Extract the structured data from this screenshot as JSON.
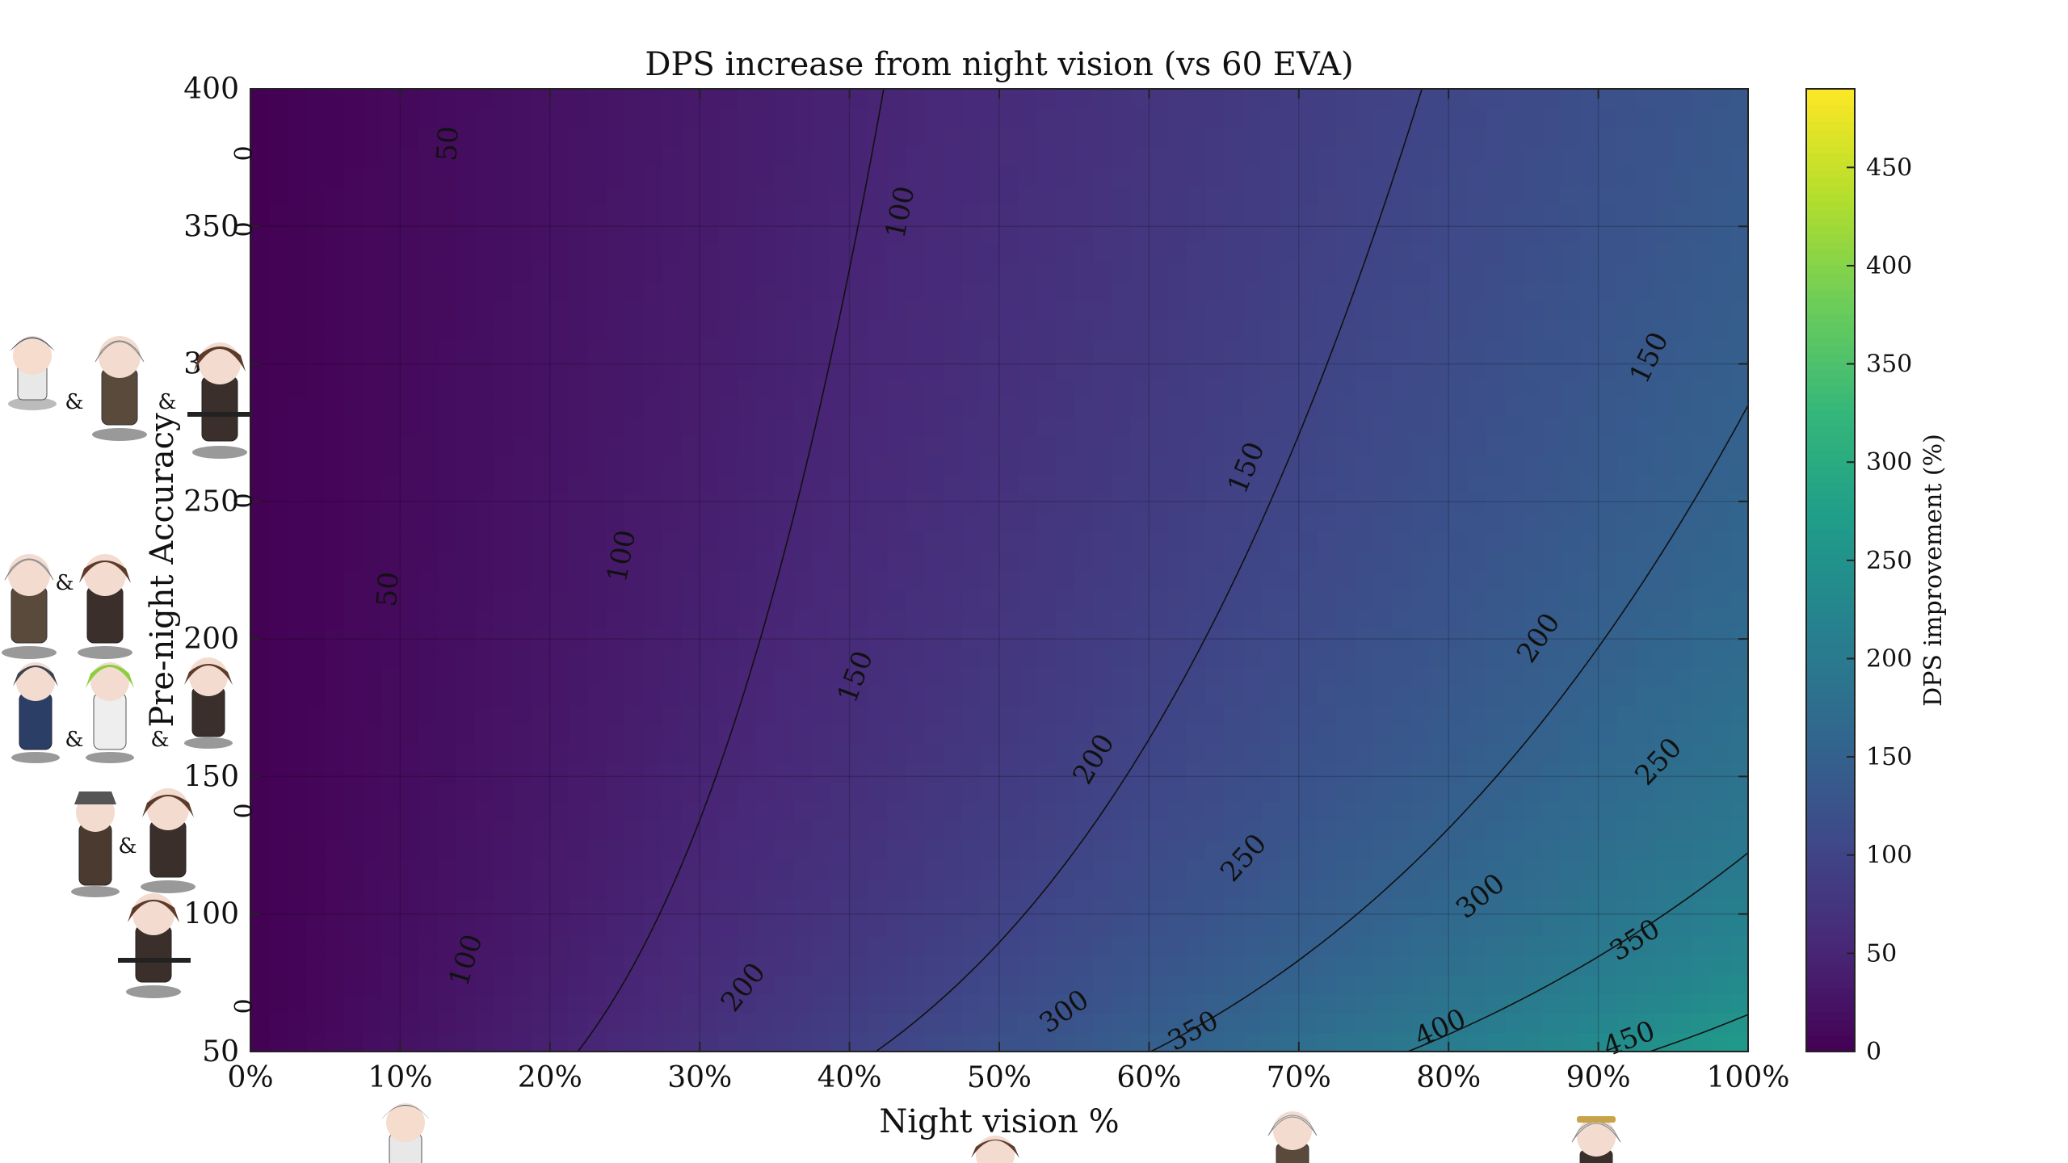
{
  "chart_data": {
    "type": "heatmap",
    "title": "DPS increase from night vision (vs 60 EVA)",
    "xlabel": "Night vision %",
    "ylabel": "Pre-night Accuracy",
    "xlim": [
      0,
      100
    ],
    "ylim": [
      50,
      400
    ],
    "xticks": [
      "0%",
      "10%",
      "20%",
      "30%",
      "40%",
      "50%",
      "60%",
      "70%",
      "80%",
      "90%",
      "100%"
    ],
    "yticks": [
      "50",
      "100",
      "150",
      "200",
      "250",
      "300",
      "350",
      "400"
    ],
    "colormap": "viridis",
    "grid": true,
    "colorbar": {
      "label": "DPS improvement (%)",
      "range": [
        0,
        490
      ],
      "ticks": [
        "0",
        "50",
        "100",
        "150",
        "200",
        "250",
        "300",
        "350",
        "400",
        "450"
      ]
    },
    "contour_levels": [
      50,
      100,
      150,
      200,
      250,
      300,
      350,
      400,
      450
    ],
    "contour_labels": [
      {
        "text": "50",
        "x": 13.3,
        "y": 380
      },
      {
        "text": "50",
        "x": 9.3,
        "y": 218
      },
      {
        "text": "100",
        "x": 43.5,
        "y": 355
      },
      {
        "text": "100",
        "x": 24.9,
        "y": 230
      },
      {
        "text": "100",
        "x": 14.5,
        "y": 83
      },
      {
        "text": "150",
        "x": 93.5,
        "y": 302
      },
      {
        "text": "150",
        "x": 66.6,
        "y": 262
      },
      {
        "text": "150",
        "x": 40.5,
        "y": 186
      },
      {
        "text": "200",
        "x": 86.1,
        "y": 200
      },
      {
        "text": "200",
        "x": 56.4,
        "y": 156
      },
      {
        "text": "200",
        "x": 33.0,
        "y": 73
      },
      {
        "text": "250",
        "x": 94.1,
        "y": 155
      },
      {
        "text": "250",
        "x": 66.4,
        "y": 120
      },
      {
        "text": "300",
        "x": 82.2,
        "y": 106
      },
      {
        "text": "300",
        "x": 54.4,
        "y": 64
      },
      {
        "text": "350",
        "x": 92.5,
        "y": 90
      },
      {
        "text": "350",
        "x": 63.0,
        "y": 57
      },
      {
        "text": "400",
        "x": 79.5,
        "y": 58
      },
      {
        "text": "450",
        "x": 92.1,
        "y": 54
      }
    ],
    "left_margin_labels": [
      "0",
      "0",
      "0",
      "0",
      "0"
    ],
    "ampersand": "&"
  }
}
